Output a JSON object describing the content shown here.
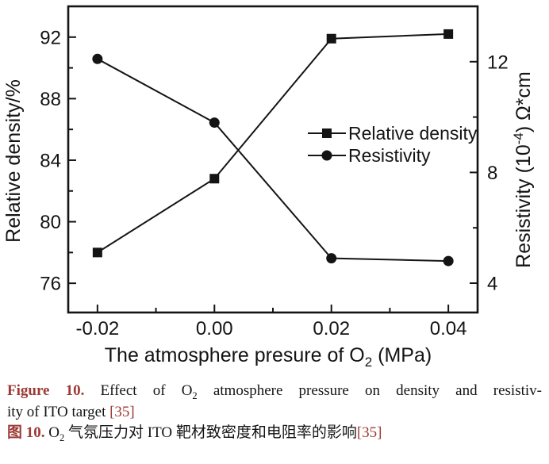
{
  "colors": {
    "accent_red": "#9c3a36",
    "chart_ink": "#141414",
    "background": "#ffffff"
  },
  "chart_data": {
    "type": "line",
    "title": "",
    "x": [
      -0.02,
      0.0,
      0.02,
      0.04
    ],
    "x_tick_labels": [
      "-0.02",
      "0.00",
      "0.02",
      "0.04"
    ],
    "series": [
      {
        "name": "Relative density",
        "axis": "left",
        "marker": "square",
        "values": [
          78.0,
          82.8,
          91.9,
          92.2
        ]
      },
      {
        "name": "Resistivity",
        "axis": "right",
        "marker": "circle",
        "values": [
          12.1,
          9.8,
          4.9,
          4.8
        ]
      }
    ],
    "x_axis": {
      "label_parts": [
        "The atmosphere presure of O",
        "2",
        " (MPa)"
      ],
      "range": [
        -0.025,
        0.045
      ],
      "minor_ticks": [
        -0.01,
        0.01,
        0.03
      ]
    },
    "left_axis": {
      "label": "Relative density/%",
      "ticks": [
        76,
        80,
        84,
        88,
        92
      ],
      "minor_ticks": [
        78,
        82,
        86,
        90
      ],
      "range": [
        74.1,
        94.0
      ]
    },
    "right_axis": {
      "label_parts": [
        "Resistivity (10",
        "-4",
        ") Ω*cm"
      ],
      "ticks": [
        4,
        8,
        12
      ],
      "minor_ticks": [
        6,
        10
      ],
      "range": [
        2.94,
        14.0
      ]
    },
    "legend": {
      "position": "center-right",
      "items": [
        {
          "label": "Relative density",
          "marker": "square"
        },
        {
          "label": "Resistivity",
          "marker": "circle"
        }
      ]
    },
    "grid": false
  },
  "caption": {
    "en": {
      "label": "Figure 10.",
      "part1": " Effect of O",
      "sub": "2",
      "part2": " atmosphere pressure on density and resistiv-",
      "part3": "ity of ITO target ",
      "ref": "[35]"
    },
    "zh": {
      "label": "图 10.",
      "part1": " O",
      "sub": "2",
      "part2": " 气氛压力对 ITO 靶材致密度和电阻率的影响",
      "ref": "[35]"
    }
  }
}
